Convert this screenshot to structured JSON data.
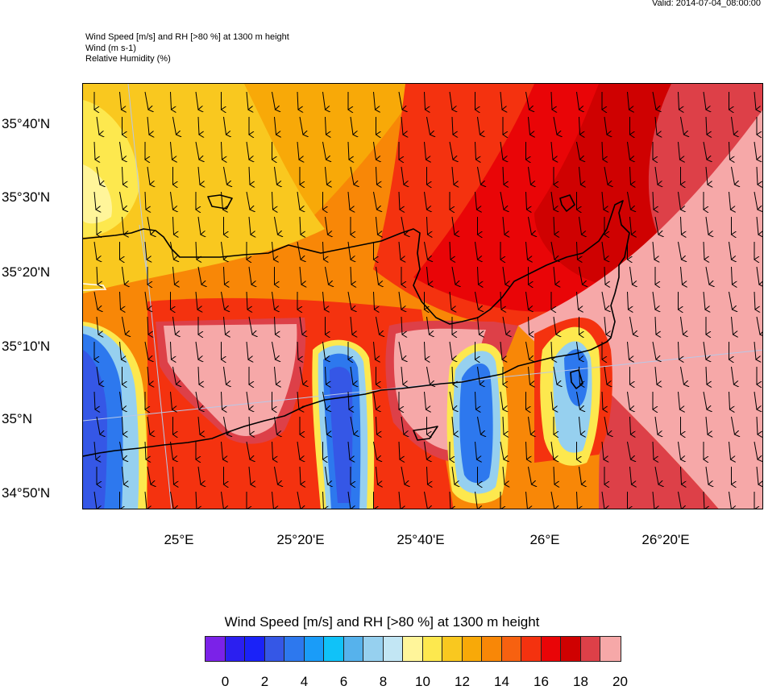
{
  "valid": "Valid: 2014-07-04_08:00:00",
  "titles": [
    "Wind Speed [m/s] and RH [>80 %] at 1300 m height",
    "Wind   (m s-1)",
    "Relative Humidity   (%)"
  ],
  "map": {
    "lat_labels": [
      "35°40'N",
      "35°30'N",
      "35°20'N",
      "35°10'N",
      "35°N",
      "34°50'N"
    ],
    "lon_labels": [
      "25°E",
      "25°20'E",
      "25°40'E",
      "26°E",
      "26°20'E"
    ],
    "wind_direction": "north-to-south (arrows pointing down)",
    "features": {
      "land": "Crete island coastline (north & south coasts) drawn in black",
      "high_wind_zone": "pink/red shading > 20 m/s in north-east and centre",
      "low_wind_zones": "blue streaks < 10 m/s in lee of mountains"
    }
  },
  "legend": {
    "title": "Wind Speed [m/s] and RH [>80 %] at 1300 m height",
    "colors": [
      "#7b22e8",
      "#2b1ff0",
      "#1a22f8",
      "#3557e6",
      "#2d78ee",
      "#1a9cf8",
      "#10c2f8",
      "#56b2ec",
      "#96d0ef",
      "#c2e6f4",
      "#fff59a",
      "#fde84e",
      "#f9c81f",
      "#f8a908",
      "#f88707",
      "#f76110",
      "#f4320f",
      "#e90507",
      "#cf0101",
      "#dd4048",
      "#f6a8a8"
    ],
    "ticks": [
      "0",
      "2",
      "4",
      "6",
      "8",
      "10",
      "12",
      "14",
      "16",
      "18",
      "20"
    ]
  }
}
